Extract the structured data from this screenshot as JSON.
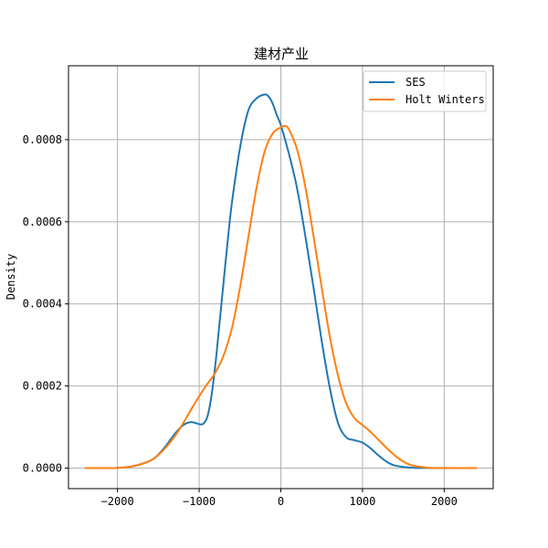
{
  "chart_data": {
    "type": "line",
    "title": "建材产业",
    "xlabel": "",
    "ylabel": "Density",
    "xlim": [
      -2600,
      2600
    ],
    "ylim": [
      -5e-05,
      0.00098
    ],
    "xticks": [
      -2000,
      -1000,
      0,
      1000,
      2000
    ],
    "xtick_labels": [
      "−2000",
      "−1000",
      "0",
      "1000",
      "2000"
    ],
    "yticks": [
      0.0,
      0.0002,
      0.0004,
      0.0006,
      0.0008
    ],
    "ytick_labels": [
      "0.0000",
      "0.0002",
      "0.0004",
      "0.0006",
      "0.0008"
    ],
    "grid": true,
    "legend_position": "top-right",
    "series": [
      {
        "name": "SES",
        "color": "#1f77b4",
        "x": [
          -2400,
          -2000,
          -1800,
          -1600,
          -1500,
          -1400,
          -1300,
          -1200,
          -1100,
          -1000,
          -950,
          -900,
          -850,
          -800,
          -750,
          -700,
          -650,
          -600,
          -500,
          -400,
          -300,
          -200,
          -150,
          -100,
          -50,
          0,
          100,
          200,
          300,
          400,
          500,
          600,
          700,
          800,
          900,
          1000,
          1100,
          1200,
          1300,
          1400,
          1600,
          1800,
          2000,
          2400
        ],
        "y": [
          0.0,
          5e-07,
          5e-06,
          1.8e-05,
          3.3e-05,
          5.6e-05,
          8.3e-05,
          0.000104,
          0.000112,
          0.000107,
          0.000108,
          0.000125,
          0.000175,
          0.000255,
          0.000355,
          0.000455,
          0.000555,
          0.000645,
          0.00078,
          0.00087,
          0.0009,
          0.00091,
          0.000905,
          0.000888,
          0.00086,
          0.000835,
          0.000765,
          0.00068,
          0.000565,
          0.00044,
          0.00031,
          0.000195,
          0.00011,
          7.5e-05,
          6.8e-05,
          6.2e-05,
          4.8e-05,
          3e-05,
          1.5e-05,
          6e-06,
          1e-06,
          2e-07,
          0.0,
          0.0
        ]
      },
      {
        "name": "Holt Winters",
        "color": "#ff7f0e",
        "x": [
          -2400,
          -2000,
          -1800,
          -1600,
          -1500,
          -1400,
          -1300,
          -1200,
          -1100,
          -1000,
          -900,
          -800,
          -700,
          -600,
          -500,
          -400,
          -300,
          -200,
          -100,
          0,
          50,
          100,
          200,
          300,
          400,
          500,
          600,
          700,
          800,
          900,
          1000,
          1100,
          1200,
          1300,
          1400,
          1500,
          1600,
          1800,
          2000,
          2400
        ],
        "y": [
          0.0,
          5e-07,
          5e-06,
          1.8e-05,
          3.2e-05,
          5.2e-05,
          7.7e-05,
          0.000108,
          0.000142,
          0.000175,
          0.000205,
          0.000233,
          0.000275,
          0.00034,
          0.00044,
          0.00056,
          0.00068,
          0.00077,
          0.000815,
          0.00083,
          0.000833,
          0.000825,
          0.000775,
          0.000685,
          0.000565,
          0.00044,
          0.00032,
          0.000225,
          0.000158,
          0.000122,
          0.000105,
          8.8e-05,
          6.8e-05,
          4.8e-05,
          3e-05,
          1.6e-05,
          7e-06,
          1e-06,
          2e-07,
          0.0
        ]
      }
    ]
  }
}
